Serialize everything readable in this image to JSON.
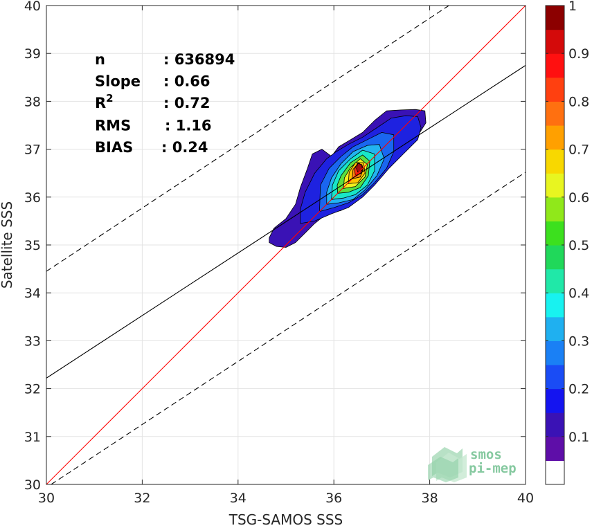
{
  "chart_data": {
    "type": "heatmap",
    "subtype": "density-scatter-contour",
    "xlabel": "TSG-SAMOS SSS",
    "ylabel": "Satellite SSS",
    "xlim": [
      30,
      40
    ],
    "ylim": [
      30,
      40
    ],
    "xticks": [
      "30",
      "32",
      "34",
      "36",
      "38",
      "40"
    ],
    "yticks": [
      "30",
      "31",
      "32",
      "33",
      "34",
      "35",
      "36",
      "37",
      "38",
      "39",
      "40"
    ],
    "grid": true,
    "stats": [
      {
        "label": "n",
        "value": ": 636894"
      },
      {
        "label": "Slope",
        "value": ": 0.66"
      },
      {
        "label": "R",
        "sup": "2",
        "value": ": 0.72"
      },
      {
        "label": "RMS",
        "value": ": 1.16"
      },
      {
        "label": "BIAS",
        "value": ": 0.24"
      }
    ],
    "lines": [
      {
        "name": "one-to-one",
        "color": "#ff0000",
        "style": "solid",
        "points": [
          [
            30,
            30
          ],
          [
            40,
            40
          ]
        ]
      },
      {
        "name": "regression",
        "color": "#000000",
        "style": "solid",
        "points": [
          [
            30,
            32.22
          ],
          [
            40,
            38.75
          ]
        ]
      },
      {
        "name": "upper-bound",
        "color": "#000000",
        "style": "dashed",
        "points": [
          [
            30,
            34.45
          ],
          [
            38.4,
            40
          ]
        ]
      },
      {
        "name": "lower-bound",
        "color": "#000000",
        "style": "dashed",
        "points": [
          [
            30.1,
            30
          ],
          [
            40,
            36.52
          ]
        ]
      }
    ],
    "density_contours": [
      {
        "level": 0.05,
        "color": "#3a12b5",
        "points": [
          [
            34.65,
            35.05
          ],
          [
            34.8,
            34.97
          ],
          [
            35.0,
            34.95
          ],
          [
            35.2,
            35.05
          ],
          [
            35.4,
            35.25
          ],
          [
            35.6,
            35.45
          ],
          [
            35.85,
            35.65
          ],
          [
            36.15,
            35.72
          ],
          [
            36.45,
            35.9
          ],
          [
            36.7,
            36.15
          ],
          [
            36.95,
            36.4
          ],
          [
            37.2,
            36.7
          ],
          [
            37.45,
            36.95
          ],
          [
            37.7,
            37.2
          ],
          [
            37.92,
            37.55
          ],
          [
            37.9,
            37.8
          ],
          [
            37.7,
            37.83
          ],
          [
            37.4,
            37.82
          ],
          [
            37.1,
            37.8
          ],
          [
            36.85,
            37.6
          ],
          [
            36.6,
            37.35
          ],
          [
            36.35,
            37.2
          ],
          [
            36.1,
            37.05
          ],
          [
            35.95,
            36.85
          ],
          [
            35.75,
            37.0
          ],
          [
            35.55,
            36.9
          ],
          [
            35.45,
            36.6
          ],
          [
            35.3,
            36.2
          ],
          [
            35.2,
            35.85
          ],
          [
            35.0,
            35.55
          ],
          [
            34.75,
            35.35
          ],
          [
            34.65,
            35.15
          ]
        ]
      },
      {
        "level": 0.15,
        "color": "#1e22e0",
        "points": [
          [
            35.3,
            35.45
          ],
          [
            35.6,
            35.5
          ],
          [
            35.95,
            35.65
          ],
          [
            36.3,
            35.78
          ],
          [
            36.6,
            36.0
          ],
          [
            36.85,
            36.25
          ],
          [
            37.15,
            36.6
          ],
          [
            37.45,
            36.9
          ],
          [
            37.75,
            37.2
          ],
          [
            37.82,
            37.45
          ],
          [
            37.75,
            37.68
          ],
          [
            37.5,
            37.7
          ],
          [
            37.2,
            37.65
          ],
          [
            36.9,
            37.45
          ],
          [
            36.6,
            37.25
          ],
          [
            36.3,
            37.1
          ],
          [
            36.05,
            36.95
          ],
          [
            35.85,
            36.8
          ],
          [
            35.6,
            36.5
          ],
          [
            35.4,
            36.1
          ],
          [
            35.3,
            35.75
          ]
        ]
      },
      {
        "level": 0.25,
        "color": "#1a66f0",
        "points": [
          [
            35.7,
            35.7
          ],
          [
            36.0,
            35.78
          ],
          [
            36.3,
            35.88
          ],
          [
            36.6,
            36.05
          ],
          [
            36.85,
            36.3
          ],
          [
            37.1,
            36.6
          ],
          [
            37.25,
            36.95
          ],
          [
            37.25,
            37.3
          ],
          [
            37.0,
            37.35
          ],
          [
            36.7,
            37.2
          ],
          [
            36.4,
            37.05
          ],
          [
            36.15,
            36.85
          ],
          [
            35.9,
            36.6
          ],
          [
            35.72,
            36.25
          ]
        ]
      },
      {
        "level": 0.35,
        "color": "#22b4f0",
        "points": [
          [
            35.85,
            35.85
          ],
          [
            36.1,
            35.88
          ],
          [
            36.4,
            35.95
          ],
          [
            36.65,
            36.15
          ],
          [
            36.9,
            36.45
          ],
          [
            37.05,
            36.8
          ],
          [
            36.95,
            37.1
          ],
          [
            36.7,
            37.08
          ],
          [
            36.4,
            36.95
          ],
          [
            36.15,
            36.7
          ],
          [
            35.95,
            36.4
          ],
          [
            35.85,
            36.1
          ]
        ]
      },
      {
        "level": 0.45,
        "color": "#18e6c8",
        "points": [
          [
            35.95,
            35.95
          ],
          [
            36.2,
            35.98
          ],
          [
            36.45,
            36.05
          ],
          [
            36.7,
            36.25
          ],
          [
            36.85,
            36.55
          ],
          [
            36.85,
            36.9
          ],
          [
            36.6,
            36.98
          ],
          [
            36.35,
            36.8
          ],
          [
            36.1,
            36.55
          ],
          [
            35.97,
            36.25
          ]
        ]
      },
      {
        "level": 0.55,
        "color": "#5ae040",
        "points": [
          [
            36.08,
            36.08
          ],
          [
            36.3,
            36.1
          ],
          [
            36.55,
            36.2
          ],
          [
            36.72,
            36.45
          ],
          [
            36.75,
            36.75
          ],
          [
            36.6,
            36.88
          ],
          [
            36.35,
            36.72
          ],
          [
            36.15,
            36.45
          ],
          [
            36.07,
            36.25
          ]
        ]
      },
      {
        "level": 0.65,
        "color": "#f2f020",
        "points": [
          [
            36.2,
            36.18
          ],
          [
            36.45,
            36.22
          ],
          [
            36.65,
            36.42
          ],
          [
            36.7,
            36.68
          ],
          [
            36.55,
            36.8
          ],
          [
            36.35,
            36.62
          ],
          [
            36.22,
            36.4
          ]
        ]
      },
      {
        "level": 0.72,
        "color": "#ffc200",
        "points": [
          [
            36.3,
            36.28
          ],
          [
            36.5,
            36.3
          ],
          [
            36.65,
            36.5
          ],
          [
            36.62,
            36.72
          ],
          [
            36.45,
            36.72
          ],
          [
            36.32,
            36.52
          ]
        ]
      },
      {
        "level": 0.8,
        "color": "#ff8410",
        "points": [
          [
            36.38,
            36.38
          ],
          [
            36.55,
            36.42
          ],
          [
            36.62,
            36.6
          ],
          [
            36.52,
            36.72
          ],
          [
            36.4,
            36.58
          ]
        ]
      },
      {
        "level": 0.88,
        "color": "#ff2a10",
        "points": [
          [
            36.45,
            36.45
          ],
          [
            36.58,
            36.5
          ],
          [
            36.6,
            36.65
          ],
          [
            36.5,
            36.72
          ],
          [
            36.43,
            36.58
          ]
        ]
      },
      {
        "level": 0.95,
        "color": "#a01010",
        "points": [
          [
            36.5,
            36.52
          ],
          [
            36.6,
            36.56
          ],
          [
            36.58,
            36.68
          ],
          [
            36.5,
            36.7
          ],
          [
            36.47,
            36.6
          ]
        ]
      }
    ],
    "colorbar": {
      "range": [
        0,
        1
      ],
      "ticks": [
        "0.1",
        "0.2",
        "0.3",
        "0.4",
        "0.5",
        "0.6",
        "0.7",
        "0.8",
        "0.9",
        "1"
      ],
      "colors": [
        "#ffffff",
        "#5e0ea8",
        "#3a12b5",
        "#1414f0",
        "#1a4cf5",
        "#1a80f5",
        "#1fb0f0",
        "#18f2f0",
        "#20e8a8",
        "#20d85a",
        "#3ce01e",
        "#90e81a",
        "#e8f520",
        "#f8d800",
        "#ffa000",
        "#ff7010",
        "#ff4010",
        "#ff1010",
        "#d40a0a",
        "#8c0000"
      ]
    },
    "logo": {
      "line1": "smos",
      "line2": "pi-mep"
    }
  }
}
